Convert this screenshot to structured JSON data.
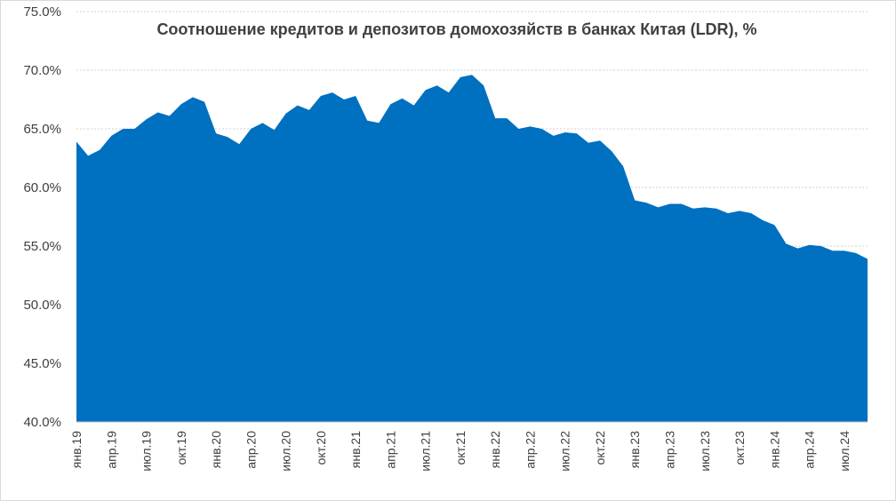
{
  "chart_data": {
    "type": "area",
    "title": "Соотношение кредитов и депозитов домохозяйств в банках Китая (LDR), %",
    "xlabel": "",
    "ylabel": "",
    "ylim": [
      40,
      75
    ],
    "yticks": [
      "40.0%",
      "45.0%",
      "50.0%",
      "55.0%",
      "60.0%",
      "65.0%",
      "70.0%",
      "75.0%"
    ],
    "ytick_values": [
      40,
      45,
      50,
      55,
      60,
      65,
      70,
      75
    ],
    "grid": true,
    "legend": "none",
    "color": "#0070C0",
    "x": [
      "янв.19",
      "фев.19",
      "мар.19",
      "апр.19",
      "май.19",
      "июн.19",
      "июл.19",
      "авг.19",
      "сен.19",
      "окт.19",
      "ноя.19",
      "дек.19",
      "янв.20",
      "фев.20",
      "мар.20",
      "апр.20",
      "май.20",
      "июн.20",
      "июл.20",
      "авг.20",
      "сен.20",
      "окт.20",
      "ноя.20",
      "дек.20",
      "янв.21",
      "фев.21",
      "мар.21",
      "апр.21",
      "май.21",
      "июн.21",
      "июл.21",
      "авг.21",
      "сен.21",
      "окт.21",
      "ноя.21",
      "дек.21",
      "янв.22",
      "фев.22",
      "мар.22",
      "апр.22",
      "май.22",
      "июн.22",
      "июл.22",
      "авг.22",
      "сен.22",
      "окт.22",
      "ноя.22",
      "дек.22",
      "янв.23",
      "фев.23",
      "мар.23",
      "апр.23",
      "май.23",
      "июн.23",
      "июл.23",
      "авг.23",
      "сен.23",
      "окт.23",
      "ноя.23",
      "дек.23",
      "янв.24",
      "фев.24",
      "мар.24",
      "апр.24",
      "май.24",
      "июн.24",
      "июл.24",
      "авг.24",
      "сен.24"
    ],
    "x_tick_labels": [
      "янв.19",
      "апр.19",
      "июл.19",
      "окт.19",
      "янв.20",
      "апр.20",
      "июл.20",
      "окт.20",
      "янв.21",
      "апр.21",
      "июл.21",
      "окт.21",
      "янв.22",
      "апр.22",
      "июл.22",
      "окт.22",
      "янв.23",
      "апр.23",
      "июл.23",
      "окт.23",
      "янв.24",
      "апр.24",
      "июл.24"
    ],
    "values": [
      63.9,
      62.7,
      63.2,
      64.4,
      65.0,
      65.0,
      65.8,
      66.4,
      66.1,
      67.1,
      67.7,
      67.3,
      64.6,
      64.3,
      63.7,
      65.0,
      65.5,
      64.9,
      66.3,
      67.0,
      66.6,
      67.8,
      68.1,
      67.5,
      67.8,
      65.7,
      65.5,
      67.1,
      67.6,
      67.0,
      68.3,
      68.7,
      68.1,
      69.4,
      69.6,
      68.7,
      65.9,
      65.9,
      65.0,
      65.2,
      65.0,
      64.4,
      64.7,
      64.6,
      63.8,
      64.0,
      63.1,
      61.8,
      58.9,
      58.7,
      58.3,
      58.6,
      58.6,
      58.2,
      58.3,
      58.2,
      57.8,
      58.0,
      57.8,
      57.2,
      56.8,
      55.2,
      54.8,
      55.1,
      55.0,
      54.6,
      54.6,
      54.4,
      53.9
    ]
  }
}
